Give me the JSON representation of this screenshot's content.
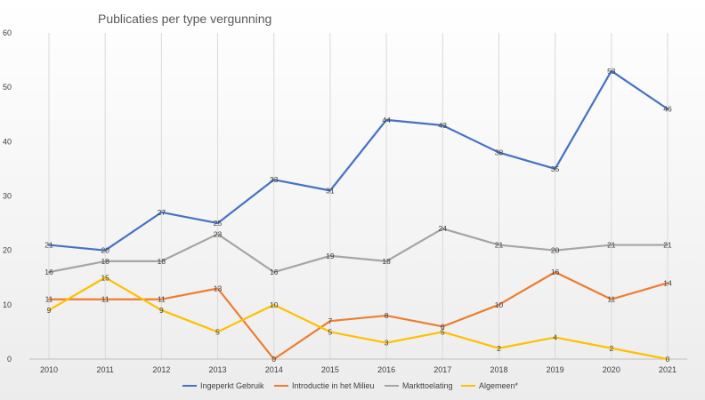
{
  "chart_data": {
    "type": "line",
    "title": "Publicaties per type vergunning",
    "xlabel": "",
    "ylabel": "",
    "categories": [
      "2010",
      "2011",
      "2012",
      "2013",
      "2014",
      "2015",
      "2016",
      "2017",
      "2018",
      "2019",
      "2020",
      "2021"
    ],
    "ylim": [
      0,
      60
    ],
    "yticks": [
      0,
      10,
      20,
      30,
      40,
      50,
      60
    ],
    "grid": "vertical",
    "legend_position": "bottom",
    "series": [
      {
        "name": "Ingeperkt Gebruik",
        "color": "#4472C4",
        "values": [
          21,
          20,
          27,
          25,
          33,
          31,
          44,
          43,
          38,
          35,
          53,
          46
        ]
      },
      {
        "name": "Introductie in het Milieu",
        "color": "#ED7D31",
        "values": [
          11,
          11,
          11,
          13,
          0,
          7,
          8,
          6,
          10,
          16,
          11,
          14
        ]
      },
      {
        "name": "Markttoelating",
        "color": "#A5A5A5",
        "values": [
          16,
          18,
          18,
          23,
          16,
          19,
          18,
          24,
          21,
          20,
          21,
          21
        ]
      },
      {
        "name": "Algemeen*",
        "color": "#FFC000",
        "values": [
          9,
          15,
          9,
          5,
          10,
          5,
          3,
          5,
          2,
          4,
          2,
          0
        ]
      }
    ]
  }
}
